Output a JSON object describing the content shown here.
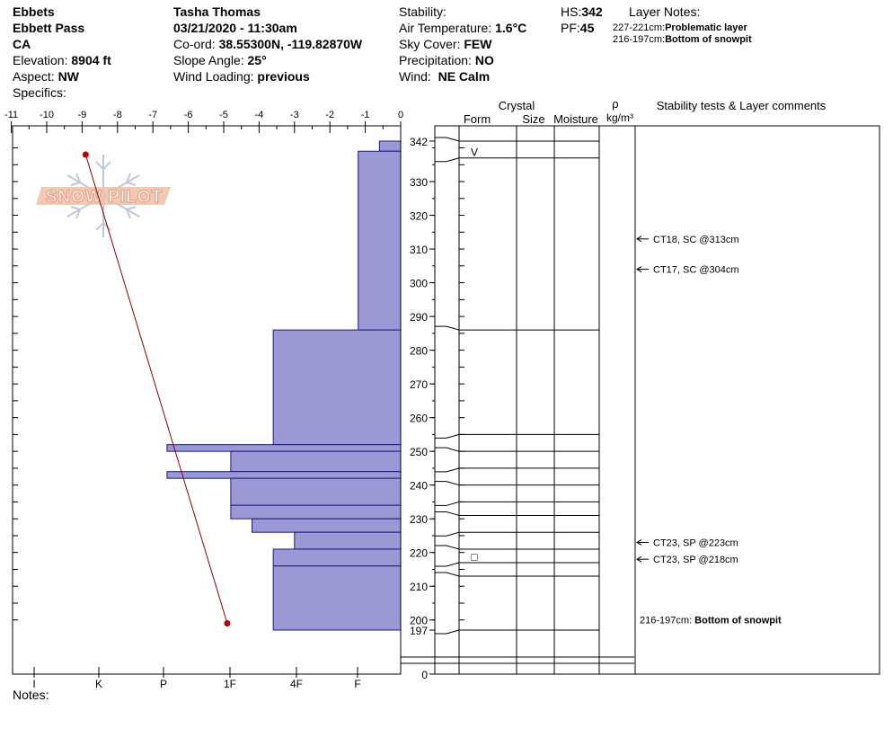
{
  "header": {
    "location": "Ebbets",
    "site": "Ebbett Pass",
    "state": "CA",
    "elevation_label": "Elevation:",
    "elevation_value": "8904 ft",
    "aspect_label": "Aspect:",
    "aspect_value": "NW",
    "specifics_label": "Specifics:",
    "observer": "Tasha Thomas",
    "datetime": "03/21/2020 - 11:30am",
    "coord_label": "Co-ord:",
    "coord_value": "38.55300N, -119.82870W",
    "slope_label": "Slope Angle:",
    "slope_value": "25°",
    "wind_loading_label": "Wind Loading:",
    "wind_loading_value": "previous",
    "stability_label": "Stability:",
    "air_temp_label": "Air Temperature:",
    "air_temp_value": "1.6°C",
    "sky_label": "Sky Cover:",
    "sky_value": "FEW",
    "precip_label": "Precipitation:",
    "precip_value": "NO",
    "wind_label": "Wind:",
    "wind_value": "NE Calm",
    "hs_label": "HS:",
    "hs_value": "342",
    "pf_label": "PF:",
    "pf_value": "45",
    "layer_notes_title": "Layer Notes:",
    "layer_note_1_range": "227-221cm:",
    "layer_note_1_text": "Problematic layer",
    "layer_note_2_range": "216-197cm:",
    "layer_note_2_text": "Bottom of snowpit"
  },
  "notes_label": "Notes:",
  "columns": {
    "crystal": "Crystal",
    "form": "Form",
    "size": "Size",
    "moisture": "Moisture",
    "rho": "ρ",
    "density_unit": "kg/m³",
    "stability": "Stability tests & Layer comments"
  },
  "logo_text": "SNOW PILOT",
  "chart_data": {
    "type": "bar",
    "title": "",
    "orientation": "horizontal",
    "top_axis_ticks": [
      "-11",
      "-10",
      "-9",
      "-8",
      "-7",
      "-6",
      "-5",
      "-4",
      "-3",
      "-2",
      "-1",
      "0"
    ],
    "hardness_ticks": [
      "I",
      "K",
      "P",
      "1F",
      "4F",
      "F"
    ],
    "depth_ticks": [
      "342",
      "330",
      "320",
      "310",
      "300",
      "290",
      "280",
      "270",
      "260",
      "250",
      "240",
      "230",
      "220",
      "210",
      "200",
      "197",
      "0"
    ],
    "ylim": [
      197,
      342
    ],
    "hardness_layers": [
      {
        "top": 342,
        "bottom": 339,
        "hardness": -0.6
      },
      {
        "top": 339,
        "bottom": 286,
        "hardness": -1.2
      },
      {
        "top": 286,
        "bottom": 252,
        "hardness": -3.6
      },
      {
        "top": 252,
        "bottom": 250,
        "hardness": -6.6
      },
      {
        "top": 250,
        "bottom": 244,
        "hardness": -4.8
      },
      {
        "top": 244,
        "bottom": 242,
        "hardness": -6.6
      },
      {
        "top": 242,
        "bottom": 234,
        "hardness": -4.8
      },
      {
        "top": 234,
        "bottom": 230,
        "hardness": -4.8
      },
      {
        "top": 230,
        "bottom": 226,
        "hardness": -4.2
      },
      {
        "top": 226,
        "bottom": 221,
        "hardness": -3.0
      },
      {
        "top": 221,
        "bottom": 216,
        "hardness": -3.6
      },
      {
        "top": 216,
        "bottom": 197,
        "hardness": -3.6
      }
    ],
    "layer_boundaries": [
      342,
      337,
      286,
      255,
      250,
      245,
      240,
      235,
      231,
      226,
      221,
      217,
      213,
      197
    ],
    "profile_line": [
      {
        "x": -8.9,
        "depth": 338
      },
      {
        "x": -4.9,
        "depth": 199
      }
    ],
    "grain_forms": [
      {
        "depth": 339,
        "symbol": "V"
      },
      {
        "depth": 219,
        "symbol": "□"
      }
    ],
    "stability_tests": [
      {
        "depth": 313,
        "text": "CT18, SC @313cm"
      },
      {
        "depth": 304,
        "text": "CT17, SC @304cm"
      },
      {
        "depth": 223,
        "text": "CT23, SP @223cm"
      },
      {
        "depth": 218,
        "text": "CT23, SP @218cm"
      }
    ],
    "layer_comment": {
      "depth": 200,
      "range": "216-197cm:",
      "text": "Bottom of snowpit"
    },
    "colors": {
      "bar": "#9999d6",
      "profile": "#8b0000",
      "logo": "#e8a080"
    }
  }
}
